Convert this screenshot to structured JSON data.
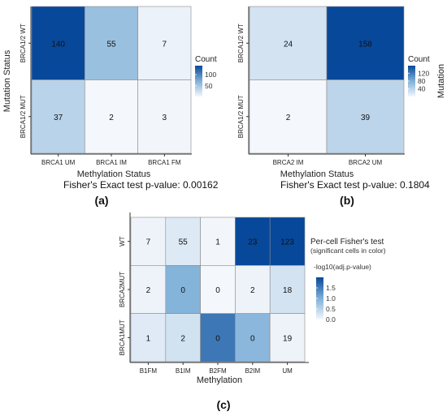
{
  "panels": {
    "a": {
      "label": "(a)",
      "pvalue_text": "Fisher's Exact test p-value: 0.00162"
    },
    "b": {
      "label": "(b)",
      "pvalue_text": "Fisher's Exact test p-value: 0.1804"
    },
    "c": {
      "label": "(c)"
    }
  },
  "colors": {
    "low": "#f4f7fc",
    "high": "#08489a",
    "grid_line": "#888888",
    "axis_line": "#333333"
  },
  "chart_data": [
    {
      "type": "heatmap",
      "panel": "a",
      "xlabel": "Methylation Status",
      "ylabel": "Mutation Status",
      "x_categories": [
        "BRCA1 UM",
        "BRCA1 IM",
        "BRCA1 FM"
      ],
      "y_categories": [
        "BRCA1/2 WT",
        "BRCA1/2 MUT"
      ],
      "values": [
        [
          140,
          55,
          7
        ],
        [
          37,
          2,
          3
        ]
      ],
      "color_range": [
        2,
        140
      ],
      "legend": {
        "title": "Count",
        "ticks": [
          50,
          100
        ],
        "position": "right"
      }
    },
    {
      "type": "heatmap",
      "panel": "b",
      "xlabel": "Methylation Status",
      "ylabel": "Mutation",
      "x_categories": [
        "BRCA2 IM",
        "BRCA2 UM"
      ],
      "y_categories": [
        "BRCA1/2 WT",
        "BRCA1/2 MUT"
      ],
      "values": [
        [
          24,
          158
        ],
        [
          2,
          39
        ]
      ],
      "color_range": [
        2,
        158
      ],
      "legend": {
        "title": "Count",
        "ticks": [
          40,
          80,
          120
        ],
        "position": "right"
      }
    },
    {
      "type": "heatmap",
      "panel": "c",
      "xlabel": "Methylation",
      "ylabel": "",
      "x_categories": [
        "B1FM",
        "B1IM",
        "B2FM",
        "B2IM",
        "UM"
      ],
      "y_categories": [
        "WT",
        "BRCA2MUT",
        "BRCA1MUT"
      ],
      "values": [
        [
          7,
          55,
          1,
          23,
          123
        ],
        [
          2,
          0,
          0,
          2,
          18
        ],
        [
          1,
          2,
          0,
          0,
          19
        ]
      ],
      "color_values": [
        [
          0.05,
          0.2,
          0.02,
          2.0,
          2.0
        ],
        [
          0.05,
          0.95,
          0.0,
          0.05,
          0.28
        ],
        [
          0.18,
          0.3,
          1.55,
          0.9,
          0.05
        ]
      ],
      "color_range": [
        0,
        2.0
      ],
      "legend": {
        "title": "Per-cell Fisher's test",
        "subtitle": "(significant cells in color)",
        "scale_label": "-log10(adj.p-value)",
        "ticks": [
          "0.0",
          "0.5",
          "1.0",
          "1.5"
        ],
        "tick_values": [
          0,
          0.5,
          1.0,
          1.5
        ],
        "position": "right"
      }
    }
  ]
}
